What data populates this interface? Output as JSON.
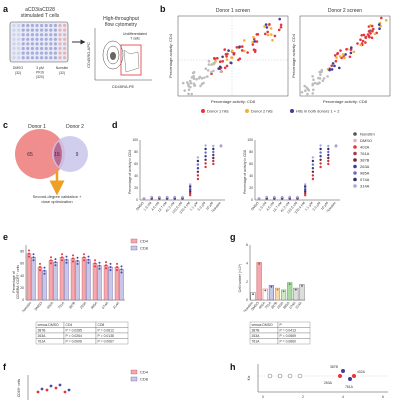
{
  "panel_labels": {
    "a": "a",
    "b": "b",
    "c": "c",
    "d": "d",
    "e": "e",
    "f": "f",
    "g": "g",
    "h": "h"
  },
  "colors": {
    "donor1": "#e8323c",
    "donor2": "#f2b233",
    "both": "#3b3e9c",
    "other": "#bdbdbd",
    "cd4": "#f4a7ac",
    "cd4_dot": "#e8323c",
    "cd8": "#c9c7e8",
    "cd8_dot": "#4b4aa8",
    "venn1": "#f08d8d",
    "venn2": "#c9c5ea",
    "arrow": "#f0a020",
    "plate": "#9da6d6"
  },
  "panel_a": {
    "plate_title": "aCD3/aCD28\nstimulated T cells",
    "groups": [
      {
        "label": "DMSO",
        "count": "(32)"
      },
      {
        "label": "3 μM\nPKIS",
        "count": "(320)"
      },
      {
        "label": "Nonstim",
        "count": "(32)"
      }
    ],
    "screen_title": "High-throughput\nflow cytometry",
    "gate_label": "Undifferentiated\nT cells",
    "xlabel": "CD45RA-PE",
    "ylabel": "CD45RO-APC"
  },
  "panel_b": {
    "screens": [
      "Donor 1 screen",
      "Donor 2 screen"
    ],
    "xlabel": "Percentage activity: CD8",
    "ylabel": "Percentage activity: CD4",
    "legend": [
      "Donor 1 hits",
      "Donor 2 hits",
      "Hits in both donors 1 + 2"
    ]
  },
  "panel_c": {
    "donor1": "Donor 1",
    "donor2": "Donor 2",
    "only1": "65",
    "both": "15",
    "only2": "9",
    "note": "Second-degree validation +\ndose optimization"
  },
  "panel_d": {
    "ylabel_left": "Percentage of activity in CD4",
    "ylabel_right": "Percentage of activity in CD8",
    "yticks": [
      "0",
      "20",
      "40",
      "60",
      "80",
      "100"
    ],
    "xticks": [
      "DMSO",
      "1.5 nM",
      "4.6 nM",
      "13.7 nM",
      "41.2 nM",
      "123.5 nM",
      "370.4 nM",
      "1.1 µM",
      "3.3 µM",
      "10 µM",
      "Nonstim"
    ],
    "legend": [
      "Nonstim",
      "DMSO",
      "402A",
      "761A",
      "387B",
      "263A",
      "985A",
      "074A",
      "314A"
    ]
  },
  "panel_e": {
    "ylabel": "Percentage of\nCD45RA⁺CCR7⁺ cells",
    "yticks": [
      "0",
      "20",
      "40",
      "60",
      "80"
    ],
    "categories": [
      "Nonstim",
      "DMSO",
      "402A",
      "761A",
      "387B",
      "263A",
      "985A",
      "074A",
      "314A"
    ],
    "legend": [
      "CD4",
      "CD8"
    ],
    "table_header": [
      "versus DMSO",
      "CD4",
      "CD8"
    ],
    "table_rows": [
      [
        "387B",
        "P = 0.0285",
        "P = 0.0612"
      ],
      [
        "263A",
        "P = 0.0264",
        "P = 0.0138"
      ],
      [
        "761A",
        "P = 0.0006",
        "P = 0.0067"
      ]
    ]
  },
  "panel_g": {
    "ylabel": "Cell number (×10⁶)",
    "yticks": [
      "0",
      "2",
      "4",
      "6"
    ],
    "categories": [
      "Nonstim",
      "DMSO",
      "402A",
      "761A",
      "387B",
      "263A",
      "985A",
      "074A",
      "314A"
    ],
    "table_header": [
      "versus DMSO",
      "P"
    ],
    "table_rows": [
      [
        "387B",
        "P = 0.0413"
      ],
      [
        "263A",
        "P = 0.0569"
      ],
      [
        "761A",
        "P = 0.0660"
      ]
    ]
  },
  "panel_f": {
    "ylabel": "CD69⁺ cells",
    "legend": [
      "CD4",
      "CD8"
    ]
  },
  "panel_h": {
    "ylabel": "Kis",
    "xticks": [
      "0",
      "2",
      "4",
      "6"
    ],
    "labels": [
      "387B",
      "402A",
      "263A",
      "761A"
    ]
  },
  "chart_data": [
    {
      "type": "bar",
      "title": "",
      "categories": [
        "Nonstim",
        "DMSO",
        "402A",
        "761A",
        "387B",
        "263A",
        "985A",
        "074A",
        "314A"
      ],
      "series": [
        {
          "name": "CD4",
          "values": [
            76,
            54,
            65,
            70,
            68,
            70,
            60,
            57,
            54
          ]
        },
        {
          "name": "CD8",
          "values": [
            70,
            48,
            62,
            66,
            64,
            66,
            56,
            54,
            50
          ]
        }
      ],
      "ylabel": "Percentage of CD45RA⁺CCR7⁺ cells",
      "ylim": [
        0,
        90
      ]
    },
    {
      "type": "bar",
      "title": "",
      "categories": [
        "Nonstim",
        "DMSO",
        "402A",
        "761A",
        "387B",
        "263A",
        "985A",
        "074A",
        "314A"
      ],
      "values": [
        0.8,
        4.1,
        1.2,
        1.6,
        1.3,
        1.1,
        1.9,
        1.3,
        1.7
      ],
      "ylabel": "Cell number (×10⁶)",
      "ylim": [
        0,
        6
      ]
    }
  ]
}
